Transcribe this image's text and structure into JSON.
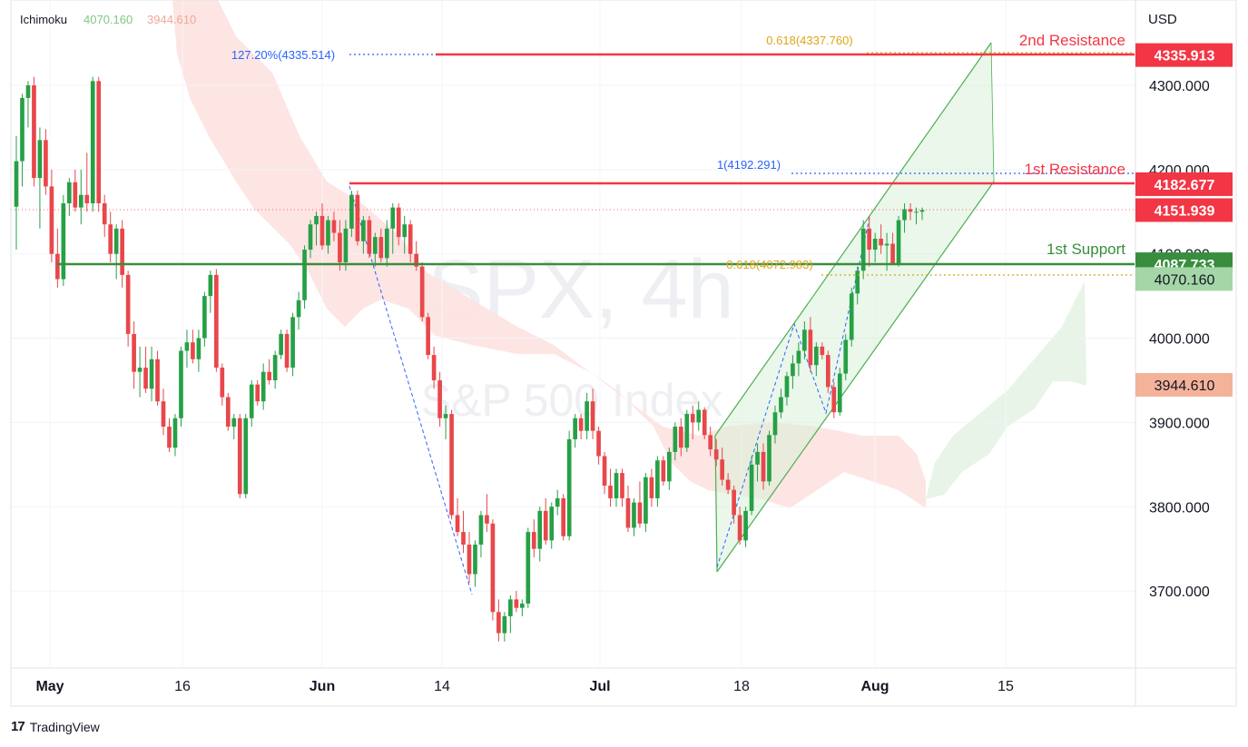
{
  "indicator": {
    "name": "Ichimoku",
    "value1": "4070.160",
    "value2": "3944.610"
  },
  "watermark": {
    "symbol": "SPX, 4h",
    "name": "S&P 500 Index"
  },
  "currency": "USD",
  "brand": "TradingView",
  "colors": {
    "up": "#26a046",
    "down": "#e8474b",
    "resistance": "#f23645",
    "support": "#388e3c",
    "fib": "#e0a416",
    "projection": "#2962ff",
    "channel": "#4caf50",
    "cloud_bear": "#fbd3d1",
    "cloud_bull": "#d9efd9"
  },
  "chart_data": {
    "type": "candlestick",
    "timeframe": "4h",
    "ylim": [
      3590,
      4390
    ],
    "x_ticks": [
      "May",
      "16",
      "Jun",
      "14",
      "Jul",
      "18",
      "Aug",
      "15"
    ],
    "y_ticks": [
      "3700.000",
      "3800.000",
      "3900.000",
      "4000.000",
      "4100.000",
      "4200.000",
      "4300.000"
    ],
    "price_labels": [
      {
        "text": "4335.913",
        "value": 4335.913,
        "style": "resistance"
      },
      {
        "text": "4182.677",
        "value": 4182.677,
        "style": "resistance"
      },
      {
        "text": "4151.939",
        "value": 4151.939,
        "style": "current"
      },
      {
        "text": "4087.733",
        "value": 4087.733,
        "style": "support"
      },
      {
        "text": "4070.160",
        "value": 4070.16,
        "style": "cloud-a"
      },
      {
        "text": "3944.610",
        "value": 3944.61,
        "style": "cloud-b"
      }
    ],
    "annotations": [
      {
        "text": "2nd Resistance",
        "value": 4335.913,
        "style": "resistance"
      },
      {
        "text": "1st Resistance",
        "value": 4182.677,
        "style": "resistance"
      },
      {
        "text": "1st Support",
        "value": 4087.733,
        "style": "support"
      },
      {
        "text": "0.618(4337.760)",
        "value": 4337.76,
        "style": "fib"
      },
      {
        "text": "127.20%(4335.514)",
        "value": 4335.514,
        "style": "projection"
      },
      {
        "text": "1(4192.291)",
        "value": 4192.291,
        "style": "projection"
      },
      {
        "text": "0.618(4072.983)",
        "value": 4072.983,
        "style": "fib"
      }
    ],
    "candles": [
      [
        4156,
        4240,
        4105,
        4210
      ],
      [
        4210,
        4290,
        4180,
        4285
      ],
      [
        4285,
        4305,
        4250,
        4300
      ],
      [
        4300,
        4310,
        4180,
        4190
      ],
      [
        4190,
        4250,
        4130,
        4235
      ],
      [
        4235,
        4248,
        4170,
        4180
      ],
      [
        4180,
        4200,
        4090,
        4100
      ],
      [
        4100,
        4130,
        4060,
        4070
      ],
      [
        4070,
        4170,
        4062,
        4160
      ],
      [
        4160,
        4190,
        4145,
        4185
      ],
      [
        4185,
        4200,
        4150,
        4155
      ],
      [
        4155,
        4200,
        4135,
        4170
      ],
      [
        4170,
        4220,
        4150,
        4160
      ],
      [
        4160,
        4310,
        4150,
        4305
      ],
      [
        4305,
        4310,
        4150,
        4160
      ],
      [
        4160,
        4170,
        4120,
        4135
      ],
      [
        4135,
        4150,
        4090,
        4100
      ],
      [
        4100,
        4135,
        4070,
        4130
      ],
      [
        4130,
        4140,
        4060,
        4075
      ],
      [
        4075,
        4080,
        3990,
        4005
      ],
      [
        4005,
        4020,
        3940,
        3960
      ],
      [
        3960,
        3990,
        3930,
        3965
      ],
      [
        3965,
        3990,
        3935,
        3940
      ],
      [
        3940,
        3990,
        3925,
        3975
      ],
      [
        3975,
        3985,
        3920,
        3925
      ],
      [
        3925,
        3940,
        3885,
        3895
      ],
      [
        3895,
        3905,
        3865,
        3870
      ],
      [
        3870,
        3910,
        3860,
        3905
      ],
      [
        3905,
        3990,
        3895,
        3985
      ],
      [
        3985,
        4010,
        3965,
        3995
      ],
      [
        3995,
        4010,
        3970,
        3975
      ],
      [
        3975,
        4010,
        3960,
        4000
      ],
      [
        4000,
        4055,
        3990,
        4050
      ],
      [
        4050,
        4080,
        4030,
        4075
      ],
      [
        4075,
        4082,
        3960,
        3965
      ],
      [
        3965,
        3970,
        3920,
        3930
      ],
      [
        3930,
        3935,
        3890,
        3895
      ],
      [
        3895,
        3910,
        3880,
        3905
      ],
      [
        3905,
        3910,
        3810,
        3815
      ],
      [
        3815,
        3910,
        3810,
        3905
      ],
      [
        3905,
        3950,
        3895,
        3945
      ],
      [
        3945,
        3950,
        3920,
        3925
      ],
      [
        3925,
        3970,
        3915,
        3960
      ],
      [
        3960,
        3975,
        3945,
        3950
      ],
      [
        3950,
        3985,
        3940,
        3980
      ],
      [
        3980,
        4010,
        3975,
        4005
      ],
      [
        4005,
        4010,
        3960,
        3965
      ],
      [
        3965,
        4030,
        3955,
        4025
      ],
      [
        4025,
        4055,
        4010,
        4045
      ],
      [
        4045,
        4110,
        4035,
        4105
      ],
      [
        4105,
        4140,
        4095,
        4135
      ],
      [
        4135,
        4150,
        4110,
        4145
      ],
      [
        4145,
        4160,
        4105,
        4110
      ],
      [
        4110,
        4145,
        4100,
        4140
      ],
      [
        4140,
        4150,
        4115,
        4125
      ],
      [
        4125,
        4140,
        4080,
        4090
      ],
      [
        4090,
        4140,
        4080,
        4130
      ],
      [
        4130,
        4175,
        4120,
        4170
      ],
      [
        4170,
        4175,
        4110,
        4115
      ],
      [
        4115,
        4145,
        4100,
        4140
      ],
      [
        4140,
        4145,
        4095,
        4100
      ],
      [
        4100,
        4125,
        4085,
        4120
      ],
      [
        4120,
        4130,
        4090,
        4095
      ],
      [
        4095,
        4140,
        4085,
        4130
      ],
      [
        4130,
        4160,
        4100,
        4155
      ],
      [
        4155,
        4160,
        4110,
        4120
      ],
      [
        4120,
        4145,
        4100,
        4135
      ],
      [
        4135,
        4140,
        4090,
        4100
      ],
      [
        4100,
        4115,
        4080,
        4085
      ],
      [
        4085,
        4090,
        4020,
        4025
      ],
      [
        4025,
        4030,
        3975,
        3980
      ],
      [
        3980,
        3990,
        3940,
        3950
      ],
      [
        3950,
        3960,
        3895,
        3905
      ],
      [
        3905,
        3920,
        3880,
        3910
      ],
      [
        3910,
        3915,
        3785,
        3790
      ],
      [
        3790,
        3810,
        3765,
        3770
      ],
      [
        3770,
        3795,
        3745,
        3755
      ],
      [
        3755,
        3770,
        3710,
        3720
      ],
      [
        3720,
        3760,
        3705,
        3755
      ],
      [
        3755,
        3795,
        3740,
        3790
      ],
      [
        3790,
        3815,
        3770,
        3780
      ],
      [
        3780,
        3785,
        3665,
        3675
      ],
      [
        3675,
        3690,
        3640,
        3650
      ],
      [
        3650,
        3675,
        3640,
        3670
      ],
      [
        3670,
        3695,
        3650,
        3690
      ],
      [
        3690,
        3700,
        3675,
        3680
      ],
      [
        3680,
        3690,
        3670,
        3685
      ],
      [
        3685,
        3775,
        3680,
        3770
      ],
      [
        3770,
        3785,
        3740,
        3750
      ],
      [
        3750,
        3800,
        3735,
        3795
      ],
      [
        3795,
        3810,
        3755,
        3760
      ],
      [
        3760,
        3805,
        3750,
        3800
      ],
      [
        3800,
        3820,
        3790,
        3810
      ],
      [
        3810,
        3815,
        3760,
        3765
      ],
      [
        3765,
        3890,
        3760,
        3880
      ],
      [
        3880,
        3910,
        3870,
        3905
      ],
      [
        3905,
        3910,
        3880,
        3890
      ],
      [
        3890,
        3935,
        3880,
        3925
      ],
      [
        3925,
        3940,
        3880,
        3890
      ],
      [
        3890,
        3895,
        3850,
        3860
      ],
      [
        3860,
        3865,
        3815,
        3825
      ],
      [
        3825,
        3845,
        3800,
        3810
      ],
      [
        3810,
        3845,
        3800,
        3840
      ],
      [
        3840,
        3845,
        3800,
        3810
      ],
      [
        3810,
        3825,
        3770,
        3775
      ],
      [
        3775,
        3810,
        3765,
        3805
      ],
      [
        3805,
        3830,
        3775,
        3780
      ],
      [
        3780,
        3840,
        3770,
        3835
      ],
      [
        3835,
        3845,
        3800,
        3810
      ],
      [
        3810,
        3860,
        3800,
        3855
      ],
      [
        3855,
        3860,
        3825,
        3830
      ],
      [
        3830,
        3870,
        3820,
        3865
      ],
      [
        3865,
        3900,
        3855,
        3895
      ],
      [
        3895,
        3905,
        3860,
        3870
      ],
      [
        3870,
        3915,
        3865,
        3910
      ],
      [
        3910,
        3920,
        3880,
        3900
      ],
      [
        3900,
        3925,
        3890,
        3915
      ],
      [
        3915,
        3918,
        3880,
        3885
      ],
      [
        3885,
        3895,
        3860,
        3868
      ],
      [
        3868,
        3880,
        3848,
        3856
      ],
      [
        3856,
        3870,
        3825,
        3832
      ],
      [
        3832,
        3840,
        3815,
        3820
      ],
      [
        3820,
        3825,
        3780,
        3790
      ],
      [
        3790,
        3800,
        3755,
        3760
      ],
      [
        3760,
        3800,
        3752,
        3795
      ],
      [
        3795,
        3860,
        3790,
        3850
      ],
      [
        3850,
        3875,
        3830,
        3865
      ],
      [
        3865,
        3875,
        3820,
        3830
      ],
      [
        3830,
        3890,
        3825,
        3885
      ],
      [
        3885,
        3920,
        3875,
        3912
      ],
      [
        3912,
        3940,
        3905,
        3930
      ],
      [
        3930,
        3960,
        3920,
        3955
      ],
      [
        3955,
        3980,
        3940,
        3970
      ],
      [
        3970,
        3995,
        3955,
        3985
      ],
      [
        3985,
        4020,
        3975,
        4010
      ],
      [
        4010,
        4025,
        3960,
        3968
      ],
      [
        3968,
        3995,
        3955,
        3990
      ],
      [
        3990,
        3995,
        3975,
        3980
      ],
      [
        3980,
        3985,
        3935,
        3942
      ],
      [
        3942,
        3948,
        3905,
        3912
      ],
      [
        3912,
        3965,
        3908,
        3958
      ],
      [
        3958,
        4005,
        3950,
        3998
      ],
      [
        3998,
        4060,
        3990,
        4053
      ],
      [
        4053,
        4085,
        4040,
        4080
      ],
      [
        4080,
        4140,
        4070,
        4130
      ],
      [
        4130,
        4145,
        4085,
        4105
      ],
      [
        4105,
        4125,
        4090,
        4118
      ],
      [
        4118,
        4135,
        4100,
        4110
      ],
      [
        4110,
        4125,
        4080,
        4112
      ],
      [
        4112,
        4125,
        4095,
        4088
      ],
      [
        4088,
        4145,
        4085,
        4140
      ],
      [
        4140,
        4160,
        4125,
        4153
      ],
      [
        4153,
        4160,
        4140,
        4150
      ],
      [
        4150,
        4155,
        4135,
        4150
      ],
      [
        4150,
        4155,
        4140,
        4152
      ]
    ]
  }
}
